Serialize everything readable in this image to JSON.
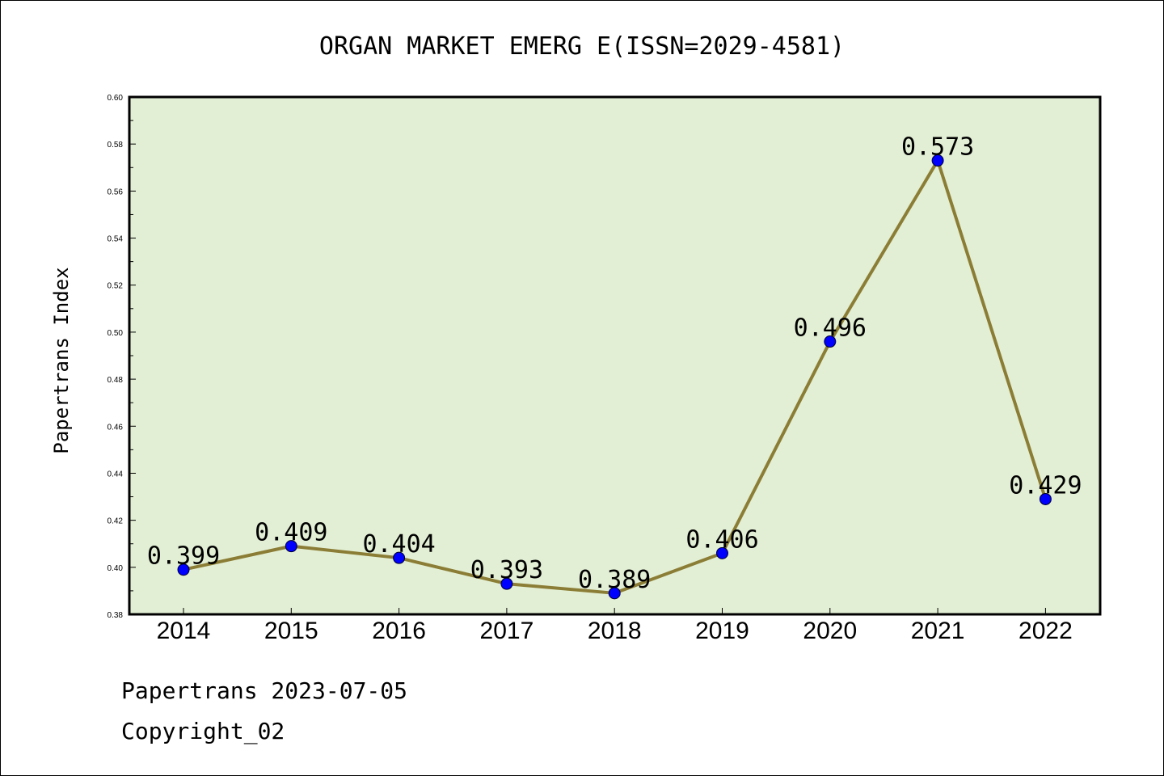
{
  "chart_data": {
    "type": "line",
    "title": "ORGAN MARKET EMERG E(ISSN=2029-4581)",
    "xlabel": "",
    "ylabel": "Papertrans Index",
    "categories": [
      "2014",
      "2015",
      "2016",
      "2017",
      "2018",
      "2019",
      "2020",
      "2021",
      "2022"
    ],
    "values": [
      0.399,
      0.409,
      0.404,
      0.393,
      0.389,
      0.406,
      0.496,
      0.573,
      0.429
    ],
    "data_labels": [
      "0.399",
      "0.409",
      "0.404",
      "0.393",
      "0.389",
      "0.406",
      "0.496",
      "0.573",
      "0.429"
    ],
    "ylim": [
      0.38,
      0.6
    ],
    "yticks": [
      "0.38",
      "0.40",
      "0.42",
      "0.44",
      "0.46",
      "0.48",
      "0.50",
      "0.52",
      "0.54",
      "0.56",
      "0.58",
      "0.60"
    ],
    "grid": false,
    "colors": {
      "plot_background": "#e2efd4",
      "line": "#8b7d35",
      "marker": "#0000ff"
    }
  },
  "footer": {
    "date_line": "Papertrans 2023-07-05",
    "copyright": "Copyright_02"
  }
}
